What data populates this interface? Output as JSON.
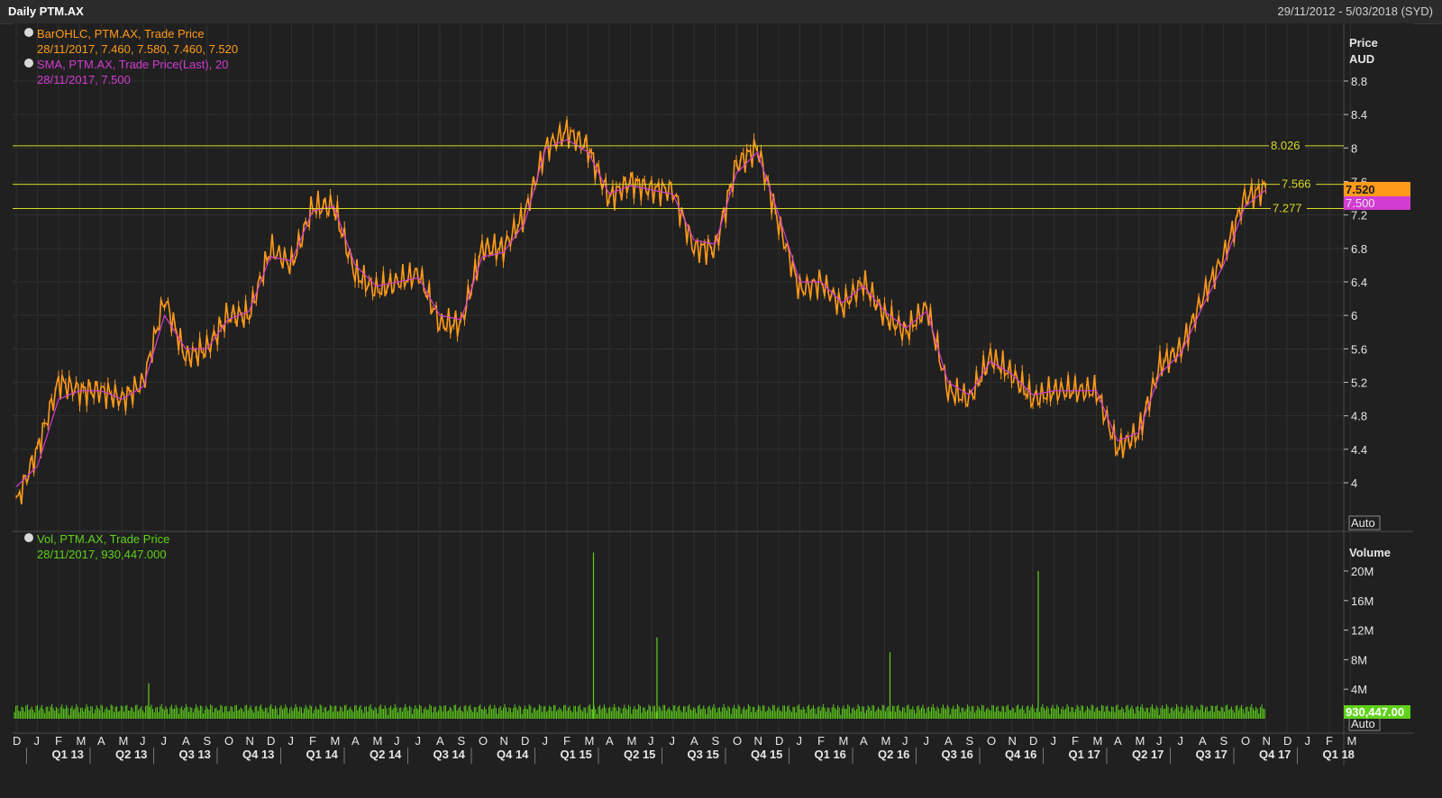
{
  "window": {
    "title": "Daily PTM.AX",
    "date_range": "29/11/2012 - 5/03/2018 (SYD)"
  },
  "legend": {
    "price_series": "BarOHLC, PTM.AX, Trade Price",
    "price_values": "28/11/2017, 7.460, 7.580, 7.460, 7.520",
    "sma_series": "SMA, PTM.AX, Trade Price(Last),  20",
    "sma_values": "28/11/2017, 7.500",
    "vol_series": "Vol, PTM.AX, Trade Price",
    "vol_values": "28/11/2017, 930,447.000"
  },
  "axis": {
    "price_title": "Price",
    "price_unit": "AUD",
    "volume_title": "Volume",
    "auto_label": "Auto"
  },
  "colors": {
    "price": "#ff9a1a",
    "sma": "#d23cd2",
    "volume": "#5fd11a",
    "level": "#d9d92a",
    "bg": "#202020"
  },
  "chart_data": [
    {
      "type": "line",
      "title": "Daily PTM.AX",
      "ylabel": "Price AUD",
      "ylim": [
        3.5,
        9.5
      ],
      "price_ticks": [
        "4",
        "4.4",
        "4.8",
        "5.2",
        "5.6",
        "6",
        "6.4",
        "6.8",
        "7.2",
        "7.6",
        "8",
        "8.4",
        "8.8"
      ],
      "months": [
        "D",
        "J",
        "F",
        "M",
        "A",
        "M",
        "J",
        "J",
        "A",
        "S",
        "O",
        "N",
        "D",
        "J",
        "F",
        "M",
        "A",
        "M",
        "J",
        "J",
        "A",
        "S",
        "O",
        "N",
        "D",
        "J",
        "F",
        "M",
        "A",
        "M",
        "J",
        "J",
        "A",
        "S",
        "O",
        "N",
        "D",
        "J",
        "F",
        "M",
        "A",
        "M",
        "J",
        "J",
        "A",
        "S",
        "O",
        "N",
        "D",
        "J",
        "F",
        "M",
        "A",
        "M",
        "J",
        "J",
        "A",
        "S",
        "O",
        "N",
        "D",
        "J",
        "F",
        "M"
      ],
      "quarters": [
        "Q1 13",
        "Q2 13",
        "Q3 13",
        "Q4 13",
        "Q1 14",
        "Q2 14",
        "Q3 14",
        "Q4 14",
        "Q1 15",
        "Q2 15",
        "Q3 15",
        "Q4 15",
        "Q1 16",
        "Q2 16",
        "Q3 16",
        "Q4 16",
        "Q1 17",
        "Q2 17",
        "Q3 17",
        "Q4 17",
        "Q1 18"
      ],
      "x_start": "2012-12",
      "x_end": "2018-03",
      "series": [
        {
          "name": "BarOHLC, PTM.AX, Trade Price",
          "x": [
            "2012-12",
            "2013-01",
            "2013-02",
            "2013-03",
            "2013-04",
            "2013-05",
            "2013-06",
            "2013-07",
            "2013-08",
            "2013-09",
            "2013-10",
            "2013-11",
            "2013-12",
            "2014-01",
            "2014-02",
            "2014-03",
            "2014-04",
            "2014-05",
            "2014-06",
            "2014-07",
            "2014-08",
            "2014-09",
            "2014-10",
            "2014-11",
            "2014-12",
            "2015-01",
            "2015-02",
            "2015-03",
            "2015-04",
            "2015-05",
            "2015-06",
            "2015-07",
            "2015-08",
            "2015-09",
            "2015-10",
            "2015-11",
            "2015-12",
            "2016-01",
            "2016-02",
            "2016-03",
            "2016-04",
            "2016-05",
            "2016-06",
            "2016-07",
            "2016-08",
            "2016-09",
            "2016-10",
            "2016-11",
            "2016-12",
            "2017-01",
            "2017-02",
            "2017-03",
            "2017-04",
            "2017-05",
            "2017-06",
            "2017-07",
            "2017-08",
            "2017-09",
            "2017-10",
            "2017-11"
          ],
          "y": [
            3.75,
            4.4,
            5.2,
            5.1,
            5.1,
            5.0,
            5.2,
            6.2,
            5.5,
            5.6,
            6.0,
            6.0,
            6.8,
            6.6,
            7.3,
            7.3,
            6.5,
            6.3,
            6.4,
            6.5,
            5.9,
            5.9,
            6.8,
            6.8,
            7.2,
            8.0,
            8.2,
            8.0,
            7.4,
            7.6,
            7.5,
            7.5,
            6.8,
            6.8,
            7.8,
            8.0,
            7.1,
            6.3,
            6.4,
            6.1,
            6.4,
            6.0,
            5.8,
            6.1,
            5.1,
            5.0,
            5.5,
            5.3,
            5.0,
            5.1,
            5.1,
            5.1,
            4.4,
            4.6,
            5.4,
            5.6,
            6.2,
            6.7,
            7.4,
            7.52
          ]
        },
        {
          "name": "SMA, PTM.AX, Trade Price(Last),  20",
          "x": [
            "2012-12",
            "2013-01",
            "2013-02",
            "2013-03",
            "2013-04",
            "2013-05",
            "2013-06",
            "2013-07",
            "2013-08",
            "2013-09",
            "2013-10",
            "2013-11",
            "2013-12",
            "2014-01",
            "2014-02",
            "2014-03",
            "2014-04",
            "2014-05",
            "2014-06",
            "2014-07",
            "2014-08",
            "2014-09",
            "2014-10",
            "2014-11",
            "2014-12",
            "2015-01",
            "2015-02",
            "2015-03",
            "2015-04",
            "2015-05",
            "2015-06",
            "2015-07",
            "2015-08",
            "2015-09",
            "2015-10",
            "2015-11",
            "2015-12",
            "2016-01",
            "2016-02",
            "2016-03",
            "2016-04",
            "2016-05",
            "2016-06",
            "2016-07",
            "2016-08",
            "2016-09",
            "2016-10",
            "2016-11",
            "2016-12",
            "2017-01",
            "2017-02",
            "2017-03",
            "2017-04",
            "2017-05",
            "2017-06",
            "2017-07",
            "2017-08",
            "2017-09",
            "2017-10",
            "2017-11"
          ],
          "y": [
            3.95,
            4.2,
            5.0,
            5.1,
            5.1,
            5.0,
            5.15,
            6.0,
            5.6,
            5.6,
            5.95,
            6.05,
            6.7,
            6.65,
            7.25,
            7.3,
            6.6,
            6.35,
            6.4,
            6.45,
            6.0,
            5.95,
            6.7,
            6.75,
            7.1,
            8.0,
            8.1,
            7.95,
            7.45,
            7.55,
            7.5,
            7.45,
            6.9,
            6.85,
            7.7,
            7.95,
            7.2,
            6.4,
            6.4,
            6.15,
            6.35,
            6.05,
            5.85,
            6.05,
            5.2,
            5.05,
            5.45,
            5.3,
            5.05,
            5.1,
            5.1,
            5.1,
            4.5,
            4.6,
            5.3,
            5.55,
            6.1,
            6.6,
            7.3,
            7.5
          ]
        }
      ],
      "levels": [
        8.026,
        7.566,
        7.277
      ],
      "level_labels": [
        "8.026",
        "7.566",
        "7.277"
      ],
      "last_price_label": "7.520",
      "last_sma_label": "7.500"
    },
    {
      "type": "bar",
      "title": "Vol, PTM.AX, Trade Price",
      "ylabel": "Volume",
      "ylim": [
        0,
        22000000
      ],
      "volume_ticks": [
        "4M",
        "8M",
        "12M",
        "16M",
        "20M"
      ],
      "spikes": [
        {
          "x": "2015-03",
          "value": 22500000
        },
        {
          "x": "2015-06",
          "value": 11000000
        },
        {
          "x": "2016-05",
          "value": 9000000
        },
        {
          "x": "2016-12",
          "value": 20000000
        },
        {
          "x": "2013-06",
          "value": 4800000
        }
      ],
      "typical_volume": 900000,
      "last_volume_label": "930,447.00"
    }
  ]
}
